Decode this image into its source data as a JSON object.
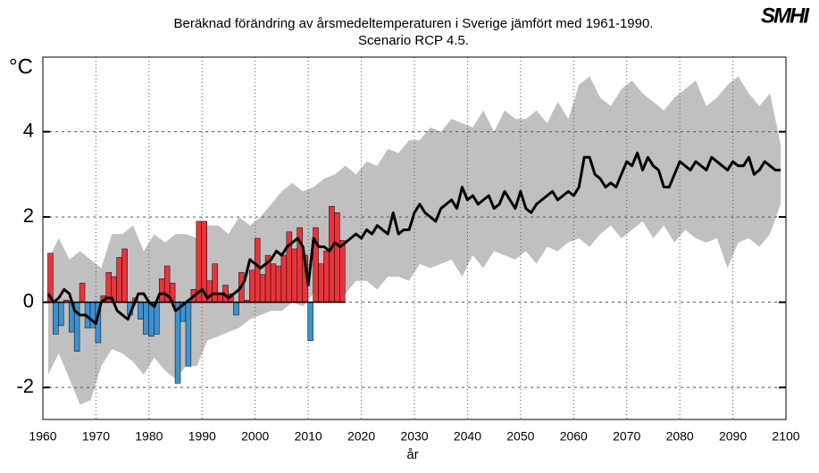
{
  "chart_data": {
    "type": "combo",
    "title": "Beräknad förändring av årsmedeltemperaturen i Sverige jämfört med 1961-1990.",
    "subtitle": "Scenario RCP 4.5.",
    "y_label": "°C",
    "x_label": "år",
    "logo": "SMHI",
    "xlim": [
      1960,
      2100
    ],
    "xticks": [
      1960,
      1970,
      1980,
      1990,
      2000,
      2010,
      2020,
      2030,
      2040,
      2050,
      2060,
      2070,
      2080,
      2090,
      2100
    ],
    "ylim": [
      -2.75,
      5.75
    ],
    "yticks": [
      -2,
      0,
      2,
      4
    ],
    "grid": true,
    "bars": {
      "positive_color": "#e8343a",
      "negative_color": "#3e91d0",
      "x": [
        1961,
        1962,
        1963,
        1964,
        1965,
        1966,
        1967,
        1968,
        1969,
        1970,
        1971,
        1972,
        1973,
        1974,
        1975,
        1976,
        1977,
        1978,
        1979,
        1980,
        1981,
        1982,
        1983,
        1984,
        1985,
        1986,
        1987,
        1988,
        1989,
        1990,
        1991,
        1992,
        1993,
        1994,
        1995,
        1996,
        1997,
        1998,
        1999,
        2000,
        2001,
        2002,
        2003,
        2004,
        2005,
        2006,
        2007,
        2008,
        2009,
        2010,
        2011,
        2012,
        2013,
        2014,
        2015,
        2016
      ],
      "values": [
        1.15,
        -0.75,
        -0.55,
        0.05,
        -0.7,
        -1.15,
        0.45,
        -0.6,
        -0.6,
        -0.95,
        0.15,
        0.7,
        0.6,
        1.05,
        1.25,
        -0.3,
        0.1,
        -0.4,
        -0.75,
        -0.8,
        -0.75,
        0.55,
        0.85,
        0.45,
        -1.9,
        -0.45,
        -1.5,
        0.3,
        1.9,
        1.9,
        0.5,
        0.9,
        0.2,
        0.4,
        0.2,
        -0.3,
        0.7,
        0.05,
        0.75,
        1.5,
        0.65,
        1.1,
        0.9,
        0.85,
        1.1,
        1.65,
        1.25,
        1.75,
        1.1,
        -0.9,
        1.75,
        0.9,
        1.2,
        2.25,
        2.1,
        1.45
      ]
    },
    "line": {
      "color": "#000000",
      "x": [
        1961,
        1962,
        1963,
        1964,
        1965,
        1966,
        1967,
        1968,
        1969,
        1970,
        1971,
        1972,
        1973,
        1974,
        1975,
        1976,
        1977,
        1978,
        1979,
        1980,
        1981,
        1982,
        1983,
        1984,
        1985,
        1986,
        1987,
        1988,
        1989,
        1990,
        1991,
        1992,
        1993,
        1994,
        1995,
        1996,
        1997,
        1998,
        1999,
        2000,
        2001,
        2002,
        2003,
        2004,
        2005,
        2006,
        2007,
        2008,
        2009,
        2010,
        2011,
        2012,
        2013,
        2014,
        2015,
        2016,
        2017,
        2018,
        2019,
        2020,
        2021,
        2022,
        2023,
        2024,
        2025,
        2026,
        2027,
        2028,
        2029,
        2030,
        2031,
        2032,
        2033,
        2034,
        2035,
        2036,
        2037,
        2038,
        2039,
        2040,
        2041,
        2042,
        2043,
        2044,
        2045,
        2046,
        2047,
        2048,
        2049,
        2050,
        2051,
        2052,
        2053,
        2054,
        2055,
        2056,
        2057,
        2058,
        2059,
        2060,
        2061,
        2062,
        2063,
        2064,
        2065,
        2066,
        2067,
        2068,
        2069,
        2070,
        2071,
        2072,
        2073,
        2074,
        2075,
        2076,
        2077,
        2078,
        2079,
        2080,
        2081,
        2082,
        2083,
        2084,
        2085,
        2086,
        2087,
        2088,
        2089,
        2090,
        2091,
        2092,
        2093,
        2094,
        2095,
        2096,
        2097,
        2098,
        2099
      ],
      "values": [
        0.2,
        0.0,
        0.1,
        0.3,
        0.2,
        -0.2,
        -0.3,
        -0.3,
        -0.4,
        -0.5,
        0.0,
        0.1,
        0.1,
        -0.2,
        -0.3,
        -0.4,
        -0.1,
        0.2,
        0.2,
        0.0,
        -0.1,
        0.2,
        0.2,
        0.1,
        -0.2,
        -0.1,
        0.0,
        0.1,
        0.2,
        0.3,
        0.1,
        0.2,
        0.2,
        0.2,
        0.1,
        0.2,
        0.3,
        0.5,
        1.0,
        0.9,
        0.8,
        0.9,
        1.0,
        1.2,
        1.1,
        1.3,
        1.4,
        1.5,
        1.3,
        0.4,
        1.5,
        1.3,
        1.3,
        1.2,
        1.4,
        1.3,
        1.4,
        1.5,
        1.6,
        1.5,
        1.7,
        1.6,
        1.8,
        1.7,
        1.6,
        2.1,
        1.6,
        1.7,
        1.7,
        2.1,
        2.3,
        2.1,
        2.0,
        1.9,
        2.2,
        2.3,
        2.4,
        2.2,
        2.7,
        2.4,
        2.5,
        2.3,
        2.4,
        2.5,
        2.2,
        2.3,
        2.6,
        2.4,
        2.2,
        2.6,
        2.2,
        2.1,
        2.3,
        2.4,
        2.5,
        2.6,
        2.4,
        2.5,
        2.6,
        2.5,
        2.7,
        3.4,
        3.4,
        3.0,
        2.9,
        2.7,
        2.8,
        2.7,
        3.0,
        3.3,
        3.2,
        3.5,
        3.1,
        3.4,
        3.2,
        3.1,
        2.7,
        2.7,
        3.0,
        3.3,
        3.2,
        3.1,
        3.3,
        3.2,
        3.1,
        3.4,
        3.3,
        3.2,
        3.1,
        3.3,
        3.2,
        3.2,
        3.4,
        3.0,
        3.1,
        3.3,
        3.2,
        3.1,
        3.1
      ]
    },
    "band": {
      "color": "#c0c0c0",
      "x": [
        1961,
        1963,
        1965,
        1967,
        1969,
        1971,
        1973,
        1975,
        1977,
        1979,
        1981,
        1983,
        1985,
        1987,
        1989,
        1991,
        1993,
        1995,
        1997,
        1999,
        2001,
        2003,
        2005,
        2007,
        2009,
        2011,
        2013,
        2015,
        2017,
        2019,
        2021,
        2023,
        2025,
        2027,
        2029,
        2031,
        2033,
        2035,
        2037,
        2039,
        2041,
        2043,
        2045,
        2047,
        2049,
        2051,
        2053,
        2055,
        2057,
        2059,
        2061,
        2063,
        2065,
        2067,
        2069,
        2071,
        2073,
        2075,
        2077,
        2079,
        2081,
        2083,
        2085,
        2087,
        2089,
        2091,
        2093,
        2095,
        2097,
        2099
      ],
      "lower": [
        -1.7,
        -1.2,
        -1.8,
        -2.4,
        -2.3,
        -1.5,
        -1.1,
        -1.2,
        -1.4,
        -1.7,
        -1.3,
        -1.6,
        -1.8,
        -1.5,
        -1.5,
        -0.9,
        -0.8,
        -0.7,
        -0.6,
        -0.4,
        -0.3,
        -0.2,
        -0.2,
        0.0,
        -0.1,
        0.2,
        0.3,
        0.4,
        0.2,
        0.5,
        0.5,
        0.3,
        0.6,
        0.6,
        0.5,
        0.9,
        0.8,
        0.9,
        1.0,
        0.6,
        1.1,
        0.8,
        1.2,
        1.1,
        1.0,
        1.2,
        0.9,
        1.3,
        1.2,
        1.4,
        1.5,
        1.3,
        1.6,
        1.8,
        1.5,
        1.7,
        1.9,
        1.5,
        1.8,
        1.4,
        1.7,
        1.5,
        1.4,
        1.5,
        0.8,
        1.4,
        1.5,
        1.3,
        1.6,
        2.3
      ],
      "upper": [
        1.0,
        1.5,
        1.0,
        1.2,
        1.0,
        0.8,
        1.6,
        1.6,
        1.8,
        1.2,
        1.6,
        1.4,
        1.6,
        1.6,
        1.5,
        1.8,
        1.8,
        1.6,
        2.0,
        1.8,
        2.0,
        2.3,
        2.6,
        2.8,
        2.6,
        2.7,
        2.9,
        3.0,
        3.2,
        3.0,
        3.3,
        3.2,
        3.6,
        3.5,
        3.8,
        3.8,
        4.1,
        4.0,
        4.3,
        4.2,
        4.1,
        4.5,
        4.0,
        4.5,
        4.3,
        4.3,
        4.5,
        4.2,
        4.7,
        4.3,
        5.1,
        5.3,
        4.8,
        4.6,
        5.0,
        5.2,
        4.9,
        4.7,
        4.5,
        4.8,
        5.0,
        5.2,
        4.6,
        4.8,
        5.1,
        5.3,
        4.9,
        4.6,
        4.9,
        3.7
      ]
    }
  }
}
